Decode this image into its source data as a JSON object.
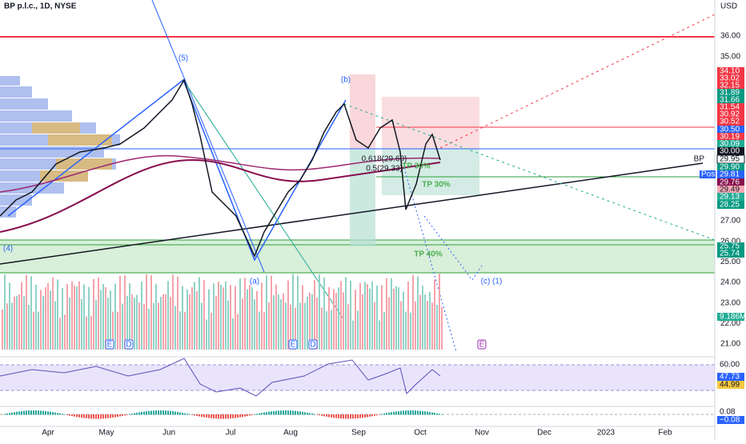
{
  "header": {
    "title": "BP p.l.c., 1D, NYSE"
  },
  "price_axis": {
    "unit": "USD",
    "labels": [
      "36.00",
      "35.00",
      "27.00",
      "26.00",
      "25.00",
      "24.00",
      "23.00",
      "22.00",
      "21.00"
    ]
  },
  "price_tags": [
    {
      "text": "34.10",
      "color": "#f23645"
    },
    {
      "text": "33.02",
      "color": "#f23645"
    },
    {
      "text": "32.15",
      "color": "#f23645"
    },
    {
      "text": "31.89",
      "color": "#089981"
    },
    {
      "text": "31.66",
      "color": "#089981"
    },
    {
      "text": "31.54",
      "color": "#f23645"
    },
    {
      "text": "30.92",
      "color": "#f23645"
    },
    {
      "text": "30.52",
      "color": "#f23645"
    },
    {
      "text": "30.50",
      "color": "#2962ff"
    },
    {
      "text": "30.19",
      "color": "#f23645"
    },
    {
      "text": "30.09",
      "color": "#22ab94"
    },
    {
      "text": "30.00",
      "color": "#131722"
    },
    {
      "text": "29.95",
      "color": "#ffffff"
    },
    {
      "text": "29.90",
      "color": "#089981"
    },
    {
      "text": "29.81",
      "color": "#2962ff"
    },
    {
      "text": "29.76",
      "color": "#880e4f"
    },
    {
      "text": "29.49",
      "color": "#f7a9b4"
    },
    {
      "text": "29.13",
      "color": "#22ab94"
    },
    {
      "text": "28.25",
      "color": "#089981"
    },
    {
      "text": "25.75",
      "color": "#089981"
    },
    {
      "text": "25.74",
      "color": "#089981"
    },
    {
      "text": "9.186M",
      "color": "#22ab94"
    }
  ],
  "symbol_label": "BP",
  "post_label": "Post",
  "rsi_labels": [
    {
      "text": "60.00",
      "color": "#ffffff"
    },
    {
      "text": "47.73",
      "color": "#2962ff"
    },
    {
      "text": "44.99",
      "color": "#f5c842"
    }
  ],
  "macd_labels": [
    {
      "text": "0.08",
      "color": "#ffffff"
    },
    {
      "text": "−0.08",
      "color": "#2962ff"
    }
  ],
  "months": [
    "Apr",
    "May",
    "Jun",
    "Jul",
    "Aug",
    "Sep",
    "Oct",
    "Nov",
    "Dec",
    "2023",
    "Feb"
  ],
  "annotations": {
    "wave5": "(5)",
    "waveb": "(b)",
    "wave4": "(4)",
    "wavea": "(a)",
    "wavec": "(c) (1)",
    "tp30a": "TP 30%",
    "tp30b": "TP 30%",
    "tp40": "TP 40%",
    "fib618": "0.618(29.60)",
    "fib5": "0.5(29.33)"
  },
  "events": [
    "E",
    "D",
    "E",
    "D",
    "E"
  ]
}
